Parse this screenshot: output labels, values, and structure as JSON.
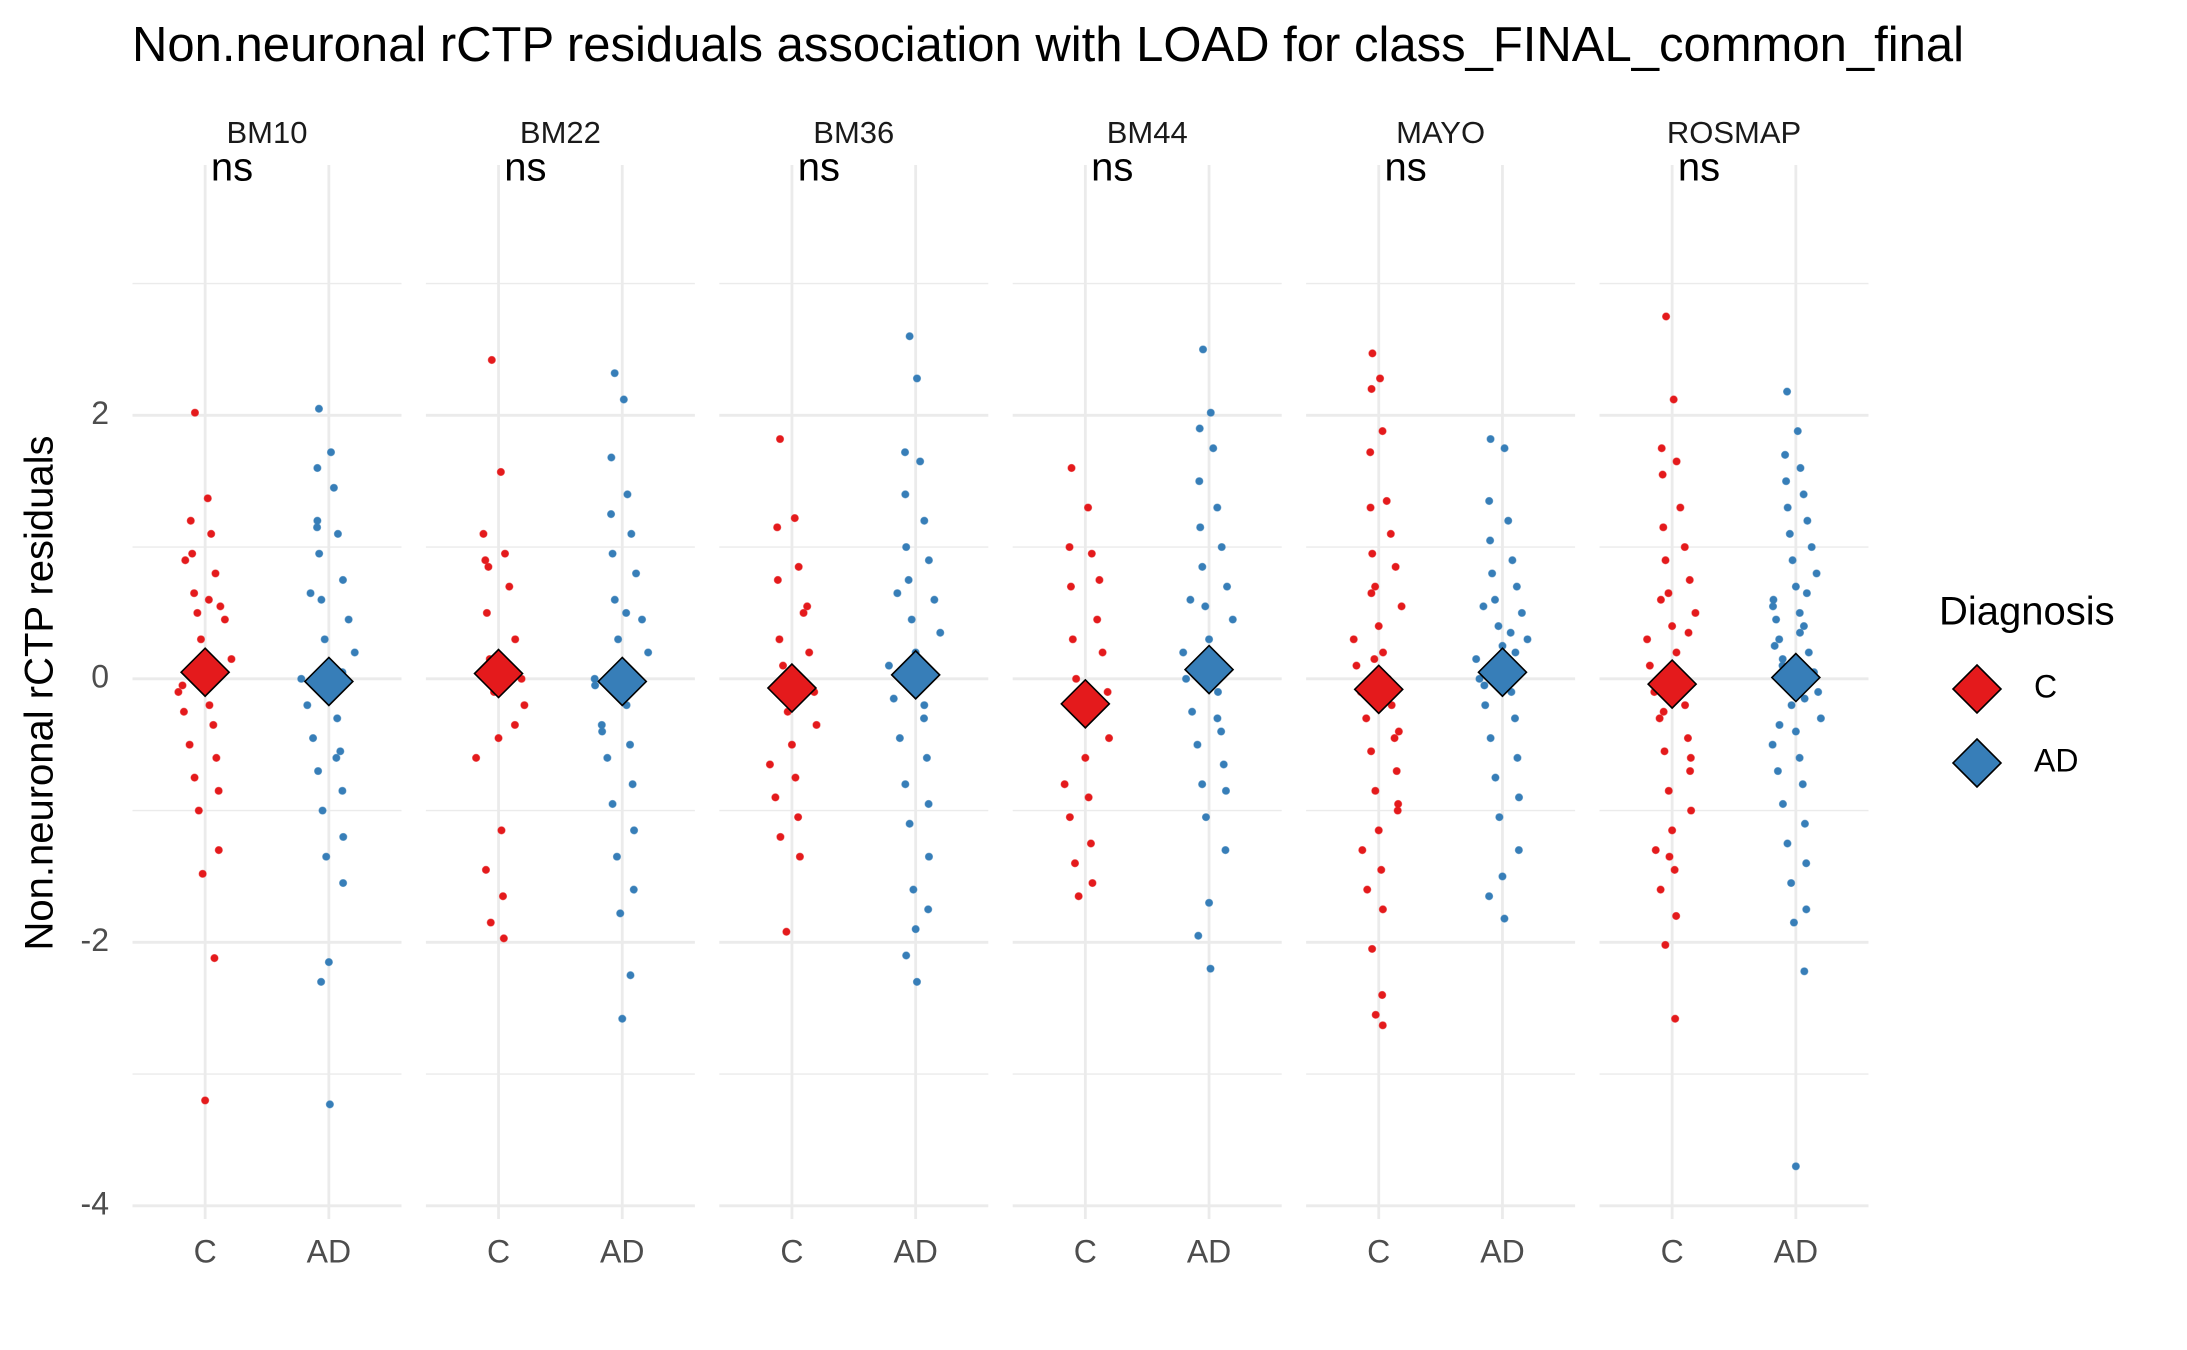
{
  "chart_data": {
    "type": "beeswarm",
    "title": "Non.neuronal rCTP residuals association with LOAD for class_FINAL_common_final",
    "y_label": "Non.neuronal rCTP residuals",
    "categories": [
      "C",
      "AD"
    ],
    "legend_title": "Diagnosis",
    "series": [
      {
        "name": "C",
        "color": "#e41a1c"
      },
      {
        "name": "AD",
        "color": "#377eb8"
      }
    ],
    "ylim": [
      -4.1,
      3.9
    ],
    "yticks": [
      -4,
      -2,
      0,
      2
    ],
    "grid": true,
    "facets": [
      {
        "name": "BM10",
        "label": "ns",
        "means": [
          0.05,
          -0.02
        ],
        "values": [
          [
            2.02,
            1.37,
            1.2,
            1.1,
            0.95,
            0.8,
            0.65,
            0.55,
            0.5,
            0.45,
            0.3,
            0.15,
            0.05,
            -0.1,
            -0.2,
            -0.25,
            -0.35,
            -0.5,
            -0.6,
            -0.75,
            -0.85,
            -1.0,
            -1.3,
            -1.48,
            -2.12,
            -3.2,
            0.9,
            0.6,
            -0.05
          ],
          [
            2.05,
            1.72,
            1.6,
            1.45,
            1.2,
            1.1,
            0.95,
            0.75,
            0.6,
            0.45,
            0.3,
            0.2,
            0.1,
            0.0,
            -0.1,
            -0.2,
            -0.3,
            -0.45,
            -0.55,
            -0.7,
            -0.85,
            -1.0,
            -1.2,
            -1.35,
            -1.55,
            -2.15,
            -2.3,
            -3.23,
            0.65,
            -0.6,
            1.15,
            0.05
          ]
        ]
      },
      {
        "name": "BM22",
        "label": "ns",
        "means": [
          0.04,
          -0.02
        ],
        "values": [
          [
            2.42,
            1.57,
            1.1,
            0.95,
            0.9,
            0.7,
            0.5,
            0.3,
            0.15,
            0.0,
            -0.1,
            -0.2,
            -0.45,
            -0.6,
            -1.15,
            -1.45,
            -1.65,
            -1.85,
            -1.97,
            0.85,
            -0.35
          ],
          [
            2.32,
            2.12,
            1.68,
            1.4,
            1.25,
            1.1,
            0.95,
            0.8,
            0.6,
            0.45,
            0.3,
            0.2,
            0.1,
            -0.05,
            -0.2,
            -0.35,
            -0.5,
            -0.6,
            -0.8,
            -0.95,
            -1.15,
            -1.35,
            -1.6,
            -1.78,
            -2.25,
            -2.58,
            0.0,
            0.5,
            -0.4
          ]
        ]
      },
      {
        "name": "BM36",
        "label": "ns",
        "means": [
          -0.07,
          0.03
        ],
        "values": [
          [
            1.82,
            1.22,
            1.15,
            0.85,
            0.75,
            0.5,
            0.3,
            0.2,
            0.1,
            -0.1,
            -0.25,
            -0.35,
            -0.5,
            -0.65,
            -0.75,
            -0.9,
            -1.05,
            -1.2,
            -1.35,
            -1.92,
            0.55,
            -0.15
          ],
          [
            2.6,
            2.28,
            1.72,
            1.65,
            1.4,
            1.2,
            1.0,
            0.9,
            0.75,
            0.6,
            0.45,
            0.35,
            0.2,
            0.1,
            0.0,
            -0.15,
            -0.3,
            -0.45,
            -0.6,
            -0.8,
            -0.95,
            -1.1,
            -1.35,
            -1.6,
            -1.75,
            -1.9,
            -2.1,
            -2.3,
            0.65,
            -0.2
          ]
        ]
      },
      {
        "name": "BM44",
        "label": "ns",
        "means": [
          -0.19,
          0.07
        ],
        "values": [
          [
            1.6,
            1.3,
            1.0,
            0.95,
            0.7,
            0.45,
            0.3,
            0.2,
            0.0,
            -0.1,
            -0.3,
            -0.45,
            -0.6,
            -0.8,
            -0.9,
            -1.05,
            -1.25,
            -1.4,
            -1.55,
            -1.65,
            0.75,
            -0.2
          ],
          [
            2.5,
            2.02,
            1.9,
            1.75,
            1.5,
            1.3,
            1.15,
            1.0,
            0.85,
            0.7,
            0.55,
            0.45,
            0.3,
            0.2,
            0.1,
            0.0,
            -0.1,
            -0.25,
            -0.4,
            -0.5,
            -0.65,
            -0.8,
            -0.85,
            -1.05,
            -1.3,
            -1.7,
            -1.95,
            -2.2,
            0.6,
            -0.3
          ]
        ]
      },
      {
        "name": "MAYO",
        "label": "ns",
        "means": [
          -0.08,
          0.05
        ],
        "values": [
          [
            2.47,
            2.28,
            2.2,
            1.88,
            1.72,
            1.35,
            1.3,
            1.1,
            0.95,
            0.85,
            0.7,
            0.55,
            0.4,
            0.3,
            0.2,
            0.1,
            0.0,
            -0.1,
            -0.2,
            -0.3,
            -0.45,
            -0.55,
            -0.7,
            -0.85,
            -1.0,
            -1.15,
            -1.3,
            -1.45,
            -1.6,
            -1.75,
            -2.05,
            -2.4,
            -2.55,
            -2.63,
            0.65,
            -0.4,
            0.15,
            -0.95
          ],
          [
            1.82,
            1.75,
            1.35,
            1.2,
            1.05,
            0.9,
            0.8,
            0.7,
            0.6,
            0.5,
            0.4,
            0.3,
            0.25,
            0.15,
            0.1,
            0.0,
            -0.1,
            -0.2,
            -0.3,
            -0.45,
            -0.6,
            -0.75,
            -0.9,
            -1.05,
            -1.3,
            -1.5,
            -1.65,
            -1.82,
            0.55,
            0.35,
            -0.05,
            0.2
          ]
        ]
      },
      {
        "name": "ROSMAP",
        "label": "ns",
        "means": [
          -0.04,
          0.01
        ],
        "values": [
          [
            2.75,
            2.12,
            1.75,
            1.65,
            1.55,
            1.3,
            1.15,
            1.0,
            0.9,
            0.75,
            0.65,
            0.5,
            0.4,
            0.3,
            0.2,
            0.1,
            0.0,
            -0.1,
            -0.2,
            -0.3,
            -0.45,
            -0.55,
            -0.7,
            -0.85,
            -1.0,
            -1.15,
            -1.3,
            -1.45,
            -1.6,
            -1.8,
            -2.02,
            -2.58,
            0.6,
            0.35,
            -0.25,
            -0.6,
            -1.35
          ],
          [
            2.18,
            1.88,
            1.7,
            1.6,
            1.5,
            1.4,
            1.3,
            1.2,
            1.1,
            1.0,
            0.9,
            0.8,
            0.7,
            0.6,
            0.5,
            0.45,
            0.4,
            0.3,
            0.2,
            0.1,
            0.05,
            0.0,
            -0.1,
            -0.2,
            -0.3,
            -0.4,
            -0.5,
            -0.6,
            -0.7,
            -0.8,
            -0.95,
            -1.1,
            -1.25,
            -1.4,
            -1.55,
            -1.75,
            -1.85,
            -2.22,
            -3.7,
            0.55,
            0.35,
            0.25,
            -0.15,
            -0.35,
            0.65,
            0.15
          ]
        ]
      }
    ]
  }
}
